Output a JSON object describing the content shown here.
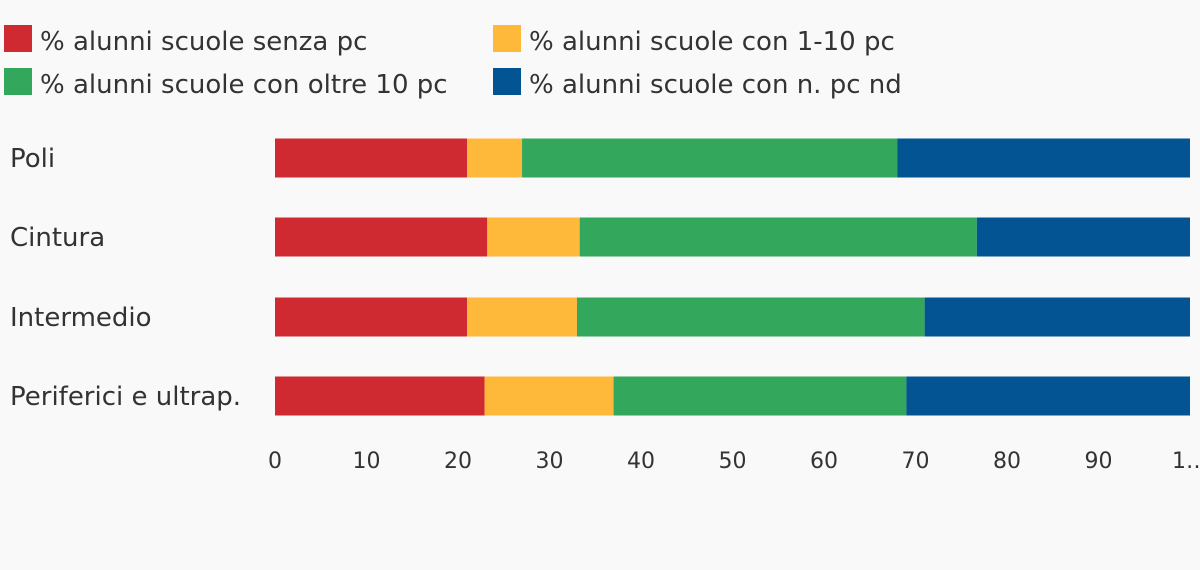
{
  "chart_data": {
    "type": "bar",
    "orientation": "horizontal",
    "stacked": true,
    "categories": [
      "Poli",
      "Cintura",
      "Intermedio",
      "Periferici e ultrap."
    ],
    "series": [
      {
        "name": "% alunni scuole senza pc",
        "color": "#cf2a32",
        "values": [
          21.0,
          23.2,
          21.0,
          22.9
        ]
      },
      {
        "name": "% alunni scuole con 1-10 pc",
        "color": "#ffb93a",
        "values": [
          6.0,
          10.1,
          12.0,
          14.1
        ]
      },
      {
        "name": "% alunni scuole con oltre 10 pc",
        "color": "#33a75c",
        "values": [
          41.0,
          43.4,
          38.0,
          32.0
        ]
      },
      {
        "name": "% alunni scuole con n. pc nd",
        "color": "#025592",
        "values": [
          32.0,
          23.3,
          29.0,
          31.0
        ]
      }
    ],
    "xlim": [
      0,
      100
    ],
    "xticks": [
      "0",
      "10",
      "20",
      "30",
      "40",
      "50",
      "60",
      "70",
      "80",
      "90",
      "1…"
    ],
    "legend_position": "top",
    "grid": false,
    "title": "",
    "xlabel": "",
    "ylabel": ""
  }
}
